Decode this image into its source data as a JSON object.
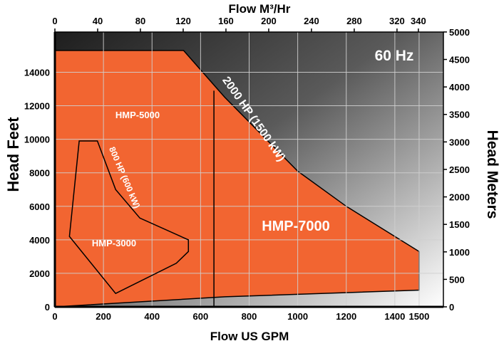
{
  "chart_data": {
    "type": "area",
    "annotation": "60 Hz",
    "xlabel_bottom": "Flow US GPM",
    "xlabel_top": "Flow M³/Hr",
    "ylabel_left": "Head Feet",
    "ylabel_right": "Head Meters",
    "x_ticks_gpm": [
      0,
      200,
      400,
      600,
      800,
      1000,
      1200,
      1400,
      1500
    ],
    "x_ticks_m3hr": [
      0,
      40,
      80,
      120,
      160,
      200,
      240,
      280,
      320,
      340
    ],
    "y_ticks_feet": [
      0,
      2000,
      4000,
      6000,
      8000,
      10000,
      12000,
      14000
    ],
    "y_ticks_meters": [
      0,
      500,
      1000,
      1500,
      2000,
      2500,
      3000,
      3500,
      4000,
      4500,
      5000
    ],
    "xlim_gpm": [
      0,
      1600
    ],
    "ylim_feet": [
      0,
      16400
    ],
    "grid": true,
    "regions": [
      {
        "name": "HMP-7000",
        "color": "#f26531",
        "boundary_gpm_feet": [
          [
            0,
            0
          ],
          [
            0,
            15300
          ],
          [
            530,
            15300
          ],
          [
            700,
            12500
          ],
          [
            1000,
            8100
          ],
          [
            1200,
            6000
          ],
          [
            1500,
            3300
          ],
          [
            1500,
            1000
          ],
          [
            700,
            600
          ],
          [
            0,
            0
          ]
        ]
      },
      {
        "name": "HMP-5000",
        "color": "#f26531",
        "boundary_gpm_feet": [
          [
            0,
            0
          ],
          [
            655,
            0
          ],
          [
            655,
            12900
          ]
        ]
      },
      {
        "name": "HMP-3000",
        "color": "#f26531",
        "boundary_gpm_feet": [
          [
            60,
            4200
          ],
          [
            100,
            9900
          ],
          [
            175,
            9900
          ],
          [
            250,
            7000
          ],
          [
            350,
            5300
          ],
          [
            550,
            4000
          ],
          [
            550,
            3300
          ],
          [
            500,
            2600
          ],
          [
            250,
            800
          ],
          [
            60,
            4200
          ]
        ]
      }
    ],
    "curve_labels": [
      "2000 HP (1500 kW)",
      "800 HP (600 kW)"
    ]
  },
  "colors": {
    "fill": "#f26531",
    "background_dark": "#2b2b2b",
    "background_light": "#ffffff",
    "grid": "#cccccc"
  }
}
